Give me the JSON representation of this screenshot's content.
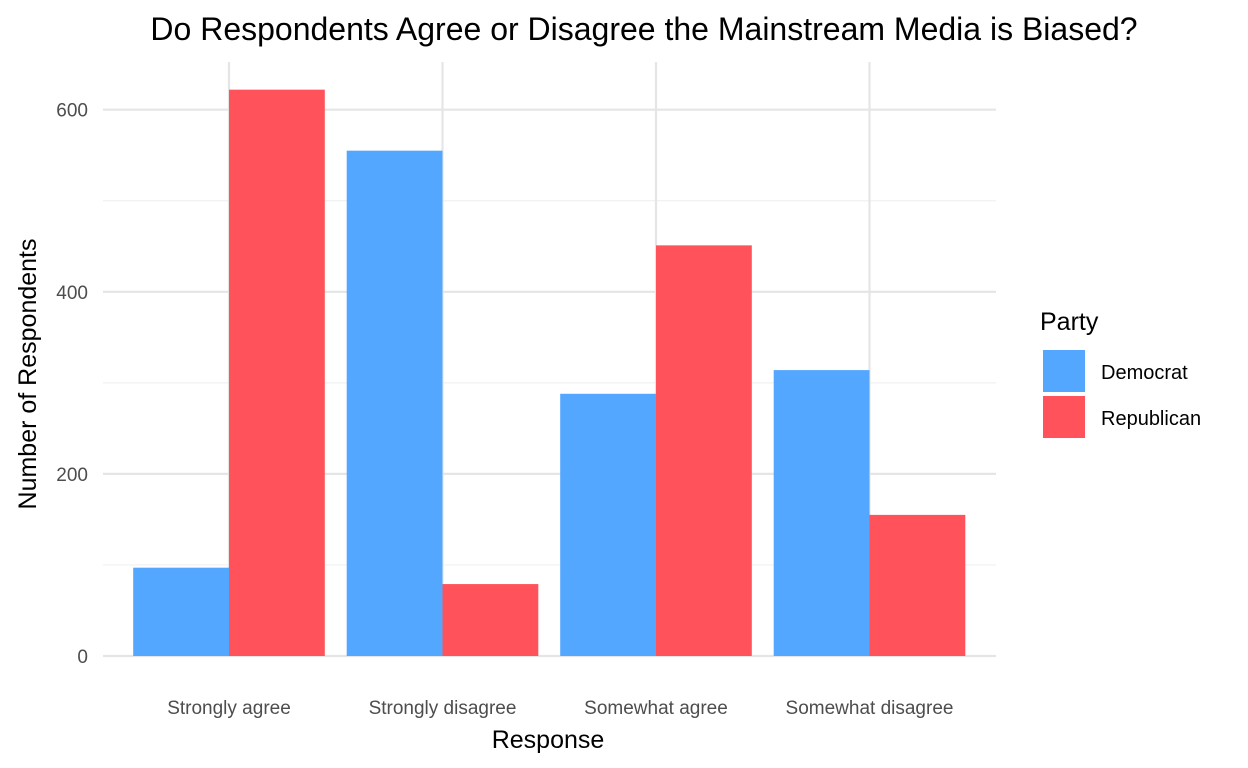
{
  "chart_data": {
    "type": "bar",
    "title": "Do Respondents Agree or Disagree the Mainstream Media is Biased?",
    "xlabel": "Response",
    "ylabel": "Number of Respondents",
    "categories": [
      "Strongly agree",
      "Strongly disagree",
      "Somewhat agree",
      "Somewhat disagree"
    ],
    "series": [
      {
        "name": "Democrat",
        "color": "#53A7FF",
        "values": [
          97,
          555,
          288,
          314
        ]
      },
      {
        "name": "Republican",
        "color": "#FF525A",
        "values": [
          622,
          79,
          451,
          155
        ]
      }
    ],
    "ylim": [
      0,
      650
    ],
    "yticks": [
      0,
      200,
      400,
      600
    ],
    "grid": true,
    "legend": {
      "title": "Party",
      "position": "right"
    }
  }
}
